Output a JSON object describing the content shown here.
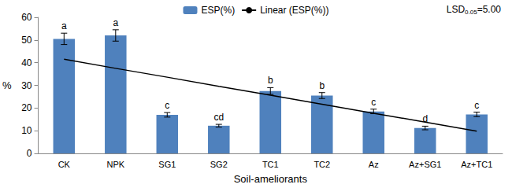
{
  "chart_data": {
    "type": "bar",
    "categories": [
      "CK",
      "NPK",
      "SG1",
      "SG2",
      "TC1",
      "TC2",
      "Az",
      "Az+SG1",
      "Az+TC1"
    ],
    "series": [
      {
        "name": "ESP(%)",
        "type": "bar",
        "color": "#4f81bd",
        "values": [
          50.5,
          52,
          17,
          12.2,
          27.5,
          25.5,
          18.5,
          11.2,
          17.2
        ],
        "errors": [
          2.5,
          2.5,
          1.0,
          0.6,
          1.5,
          1.3,
          1.0,
          0.8,
          1.0
        ],
        "letters": [
          "a",
          "a",
          "c",
          "cd",
          "b",
          "b",
          "c",
          "d",
          "c"
        ]
      },
      {
        "name": "Linear (ESP(%))",
        "type": "line",
        "color": "#000000",
        "line_style": "solid",
        "values": [
          41.5,
          37.5,
          33.6,
          29.6,
          25.7,
          21.7,
          17.7,
          13.8,
          9.8
        ]
      }
    ],
    "x_label": "Soil-ameliorants",
    "y_label": "%",
    "annotation": {
      "text": "LSD",
      "subscript": "0.05",
      "suffix": "=5.00"
    },
    "ylim": [
      0,
      60
    ],
    "yticks": [
      0,
      10,
      20,
      30,
      40,
      50,
      60
    ],
    "grid": false,
    "legend": "top"
  }
}
